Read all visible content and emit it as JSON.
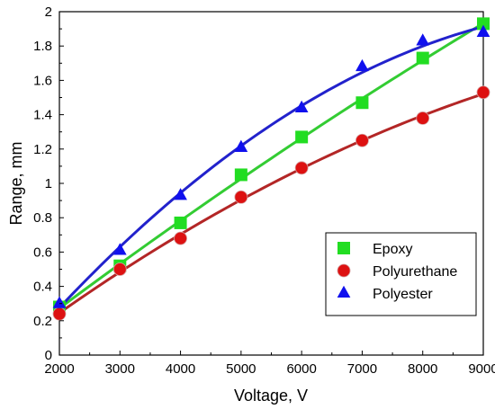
{
  "chart_data": {
    "type": "line",
    "xlabel": "Voltage, V",
    "ylabel": "Range, mm",
    "xlim": [
      2000,
      9000
    ],
    "ylim": [
      0,
      2
    ],
    "xticks": [
      2000,
      3000,
      4000,
      5000,
      6000,
      7000,
      8000,
      9000
    ],
    "xtick_labels": [
      "2000",
      "3000",
      "4000",
      "5000",
      "6000",
      "7000",
      "8000",
      "9000"
    ],
    "yticks": [
      0,
      0.2,
      0.4,
      0.6,
      0.8,
      1,
      1.2,
      1.4,
      1.6,
      1.8,
      2
    ],
    "ytick_labels": [
      "0",
      "0.2",
      "0.4",
      "0.6",
      "0.8",
      "1",
      "1.2",
      "1.4",
      "1.6",
      "1.8",
      "2"
    ],
    "grid": false,
    "legend_position": "right",
    "x": [
      2000,
      3000,
      4000,
      5000,
      6000,
      7000,
      8000,
      9000
    ],
    "series": [
      {
        "name": "Epoxy",
        "marker": "square",
        "color": "#22dd22",
        "line_color": "#33cc33",
        "values": [
          0.28,
          0.52,
          0.77,
          1.05,
          1.27,
          1.47,
          1.73,
          1.93
        ]
      },
      {
        "name": "Polyurethane",
        "marker": "circle",
        "color": "#dd1111",
        "line_color": "#b32626",
        "values": [
          0.24,
          0.5,
          0.68,
          0.92,
          1.09,
          1.25,
          1.38,
          1.53
        ]
      },
      {
        "name": "Polyester",
        "marker": "triangle",
        "color": "#1010ee",
        "line_color": "#2222cc",
        "values": [
          0.3,
          0.61,
          0.93,
          1.21,
          1.44,
          1.68,
          1.83,
          1.88
        ]
      }
    ]
  }
}
